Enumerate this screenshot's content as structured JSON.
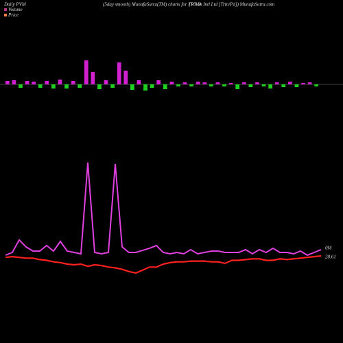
{
  "header": {
    "left": "Daily PVM",
    "center": "(5day smooth) MunafaSutra(TM) charts for TRT-D",
    "right": "(Triton Intl Ltd [Trtn/Pd]) MunafaSutra.com"
  },
  "chart_data": [
    {
      "type": "bar",
      "values": [
        5,
        6,
        -5,
        5,
        4,
        -5,
        5,
        -6,
        7,
        -6,
        5,
        -5,
        35,
        18,
        -7,
        6,
        -5,
        32,
        20,
        -8,
        6,
        -9,
        -5,
        6,
        -7,
        4,
        -3,
        3,
        -3,
        4,
        3,
        -3,
        3,
        -3,
        2,
        -7,
        3,
        -4,
        3,
        -3,
        -6,
        3,
        -4,
        4,
        -4,
        2,
        3,
        -3
      ],
      "positive_color": "#d020d0",
      "negative_color": "#20d020"
    },
    {
      "type": "line",
      "series": [
        {
          "name": "Volume",
          "color": "#e040e0",
          "legend_color": "#c03090",
          "values": [
            0.008,
            0.012,
            0.03,
            0.02,
            0.014,
            0.014,
            0.022,
            0.014,
            0.028,
            0.014,
            0.012,
            0.01,
            0.142,
            0.012,
            0.01,
            0.012,
            0.14,
            0.02,
            0.012,
            0.012,
            0.015,
            0.018,
            0.022,
            0.012,
            0.01,
            0.012,
            0.01,
            0.016,
            0.01,
            0.012,
            0.014,
            0.014,
            0.012,
            0.012,
            0.012,
            0.016,
            0.01,
            0.016,
            0.012,
            0.018,
            0.012,
            0.012,
            0.01,
            0.014,
            0.008,
            0.012,
            0.016
          ],
          "value_labels": [
            null,
            null,
            null,
            null,
            null,
            null,
            null,
            null,
            null,
            null,
            null,
            null,
            null,
            null,
            null,
            null,
            null,
            null,
            null,
            null,
            null,
            null,
            null,
            null,
            null,
            null,
            null,
            null,
            null,
            null,
            null,
            null,
            null,
            null,
            null,
            null,
            null,
            null,
            null,
            null,
            null,
            null,
            null,
            null,
            null,
            null,
            "0M"
          ]
        },
        {
          "name": "Price",
          "color": "#ff2020",
          "legend_color": "#f08040",
          "values": [
            28.41,
            28.51,
            28.41,
            28.31,
            28.31,
            28.11,
            28.01,
            27.81,
            27.71,
            27.51,
            27.41,
            27.51,
            27.21,
            27.41,
            27.31,
            27.11,
            27.01,
            26.81,
            26.51,
            26.31,
            26.71,
            27.11,
            27.11,
            27.51,
            27.71,
            27.81,
            27.81,
            27.91,
            27.91,
            27.91,
            27.81,
            27.81,
            27.61,
            28.01,
            28.01,
            28.11,
            28.21,
            28.21,
            28.01,
            28.01,
            28.21,
            28.11,
            28.21,
            28.31,
            28.41,
            28.51,
            28.61
          ],
          "value_labels": [
            null,
            null,
            null,
            null,
            null,
            null,
            null,
            null,
            null,
            null,
            null,
            null,
            null,
            null,
            null,
            null,
            null,
            null,
            null,
            null,
            null,
            null,
            null,
            null,
            null,
            null,
            null,
            null,
            null,
            null,
            null,
            null,
            null,
            null,
            null,
            null,
            null,
            null,
            null,
            null,
            null,
            null,
            null,
            null,
            null,
            null,
            "28.61"
          ]
        }
      ]
    }
  ]
}
